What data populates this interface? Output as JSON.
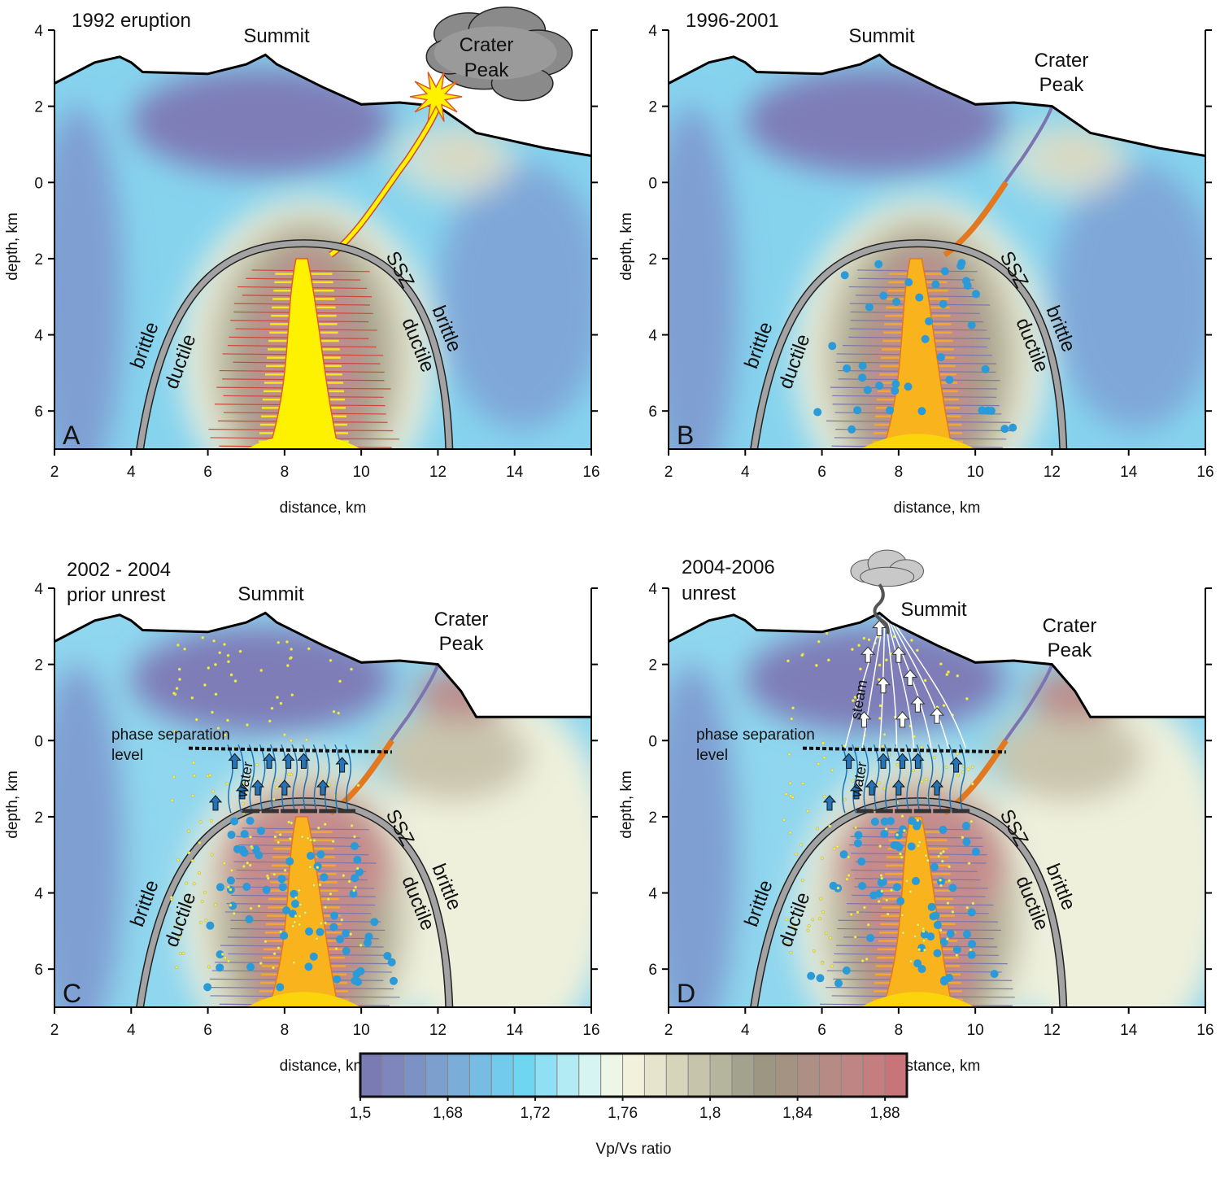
{
  "axes": {
    "x_label": "distance, km",
    "y_label": "depth, km",
    "xlim": [
      2,
      16
    ],
    "ylim": [
      -4,
      7
    ],
    "xticks": [
      2,
      4,
      6,
      8,
      10,
      12,
      14,
      16
    ],
    "yticks": [
      {
        "value": -4,
        "label": "4"
      },
      {
        "value": -2,
        "label": "2"
      },
      0,
      2,
      4,
      6
    ]
  },
  "annotations": {
    "summit": "Summit",
    "crater": [
      "Crater",
      "Peak"
    ],
    "ssz": "SSZ",
    "brittle": "brittle",
    "ductile": "ductile",
    "phase": [
      "phase separation",
      "level"
    ],
    "water": "water",
    "steam": "steam"
  },
  "panels": [
    {
      "label": "A",
      "title": [
        "1992 eruption"
      ]
    },
    {
      "label": "B",
      "title": [
        "1996-2001"
      ]
    },
    {
      "label": "C",
      "title": [
        "2002 - 2004",
        "prior unrest"
      ]
    },
    {
      "label": "D",
      "title": [
        "2004-2006",
        "unrest"
      ]
    }
  ],
  "colorbar": {
    "title": "Vp/Vs ratio",
    "ticks": [
      {
        "value": 1.5,
        "label": "1,5"
      },
      {
        "value": 1.68,
        "label": "1,68"
      },
      {
        "value": 1.72,
        "label": "1,72"
      },
      {
        "value": 1.76,
        "label": "1,76"
      },
      {
        "value": 1.8,
        "label": "1,8"
      },
      {
        "value": 1.84,
        "label": "1,84"
      },
      {
        "value": 1.88,
        "label": "1,88"
      }
    ],
    "colors": [
      "#7b7bb3",
      "#7f86bb",
      "#7d92c4",
      "#7c9fce",
      "#7aaed8",
      "#77bde3",
      "#72cbec",
      "#6fd6f2",
      "#8fe0f4",
      "#b3ebf4",
      "#d6f4f2",
      "#eef6e8",
      "#f2f1dc",
      "#e6e4cc",
      "#d6d5bc",
      "#c6c5ab",
      "#b5b49c",
      "#a3a28e",
      "#9c9683",
      "#a49283",
      "#ad8f85",
      "#b68b86",
      "#be8584",
      "#c47e80",
      "#c8757a"
    ]
  }
}
